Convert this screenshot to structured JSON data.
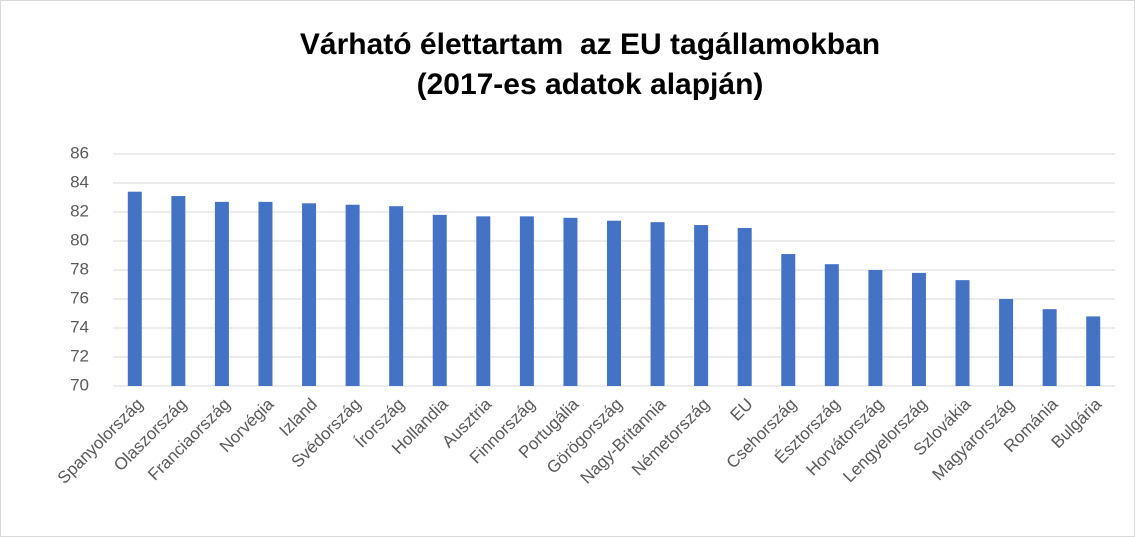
{
  "chart_data": {
    "type": "bar",
    "title": "Várható élettartam  az EU tagállamokban",
    "subtitle": "(2017-es adatok alapján)",
    "categories": [
      "Spanyolország",
      "Olaszország",
      "Franciaország",
      "Norvégia",
      "Izland",
      "Svédország",
      "Írország",
      "Hollandia",
      "Ausztria",
      "Finnország",
      "Portugália",
      "Görögország",
      "Nagy-Britannia",
      "Németország",
      "EU",
      "Csehország",
      "Észtország",
      "Horvátország",
      "Lengyelország",
      "Szlovákia",
      "Magyarország",
      "Románia",
      "Bulgária"
    ],
    "values": [
      83.4,
      83.1,
      82.7,
      82.7,
      82.6,
      82.5,
      82.4,
      81.8,
      81.7,
      81.7,
      81.6,
      81.4,
      81.3,
      81.1,
      80.9,
      79.1,
      78.4,
      78.0,
      77.8,
      77.3,
      76.0,
      75.3,
      74.8
    ],
    "color": "#4472c4",
    "ylim": [
      70,
      86
    ],
    "yticks": [
      70,
      72,
      74,
      76,
      78,
      80,
      82,
      84,
      86
    ],
    "grid": true
  }
}
